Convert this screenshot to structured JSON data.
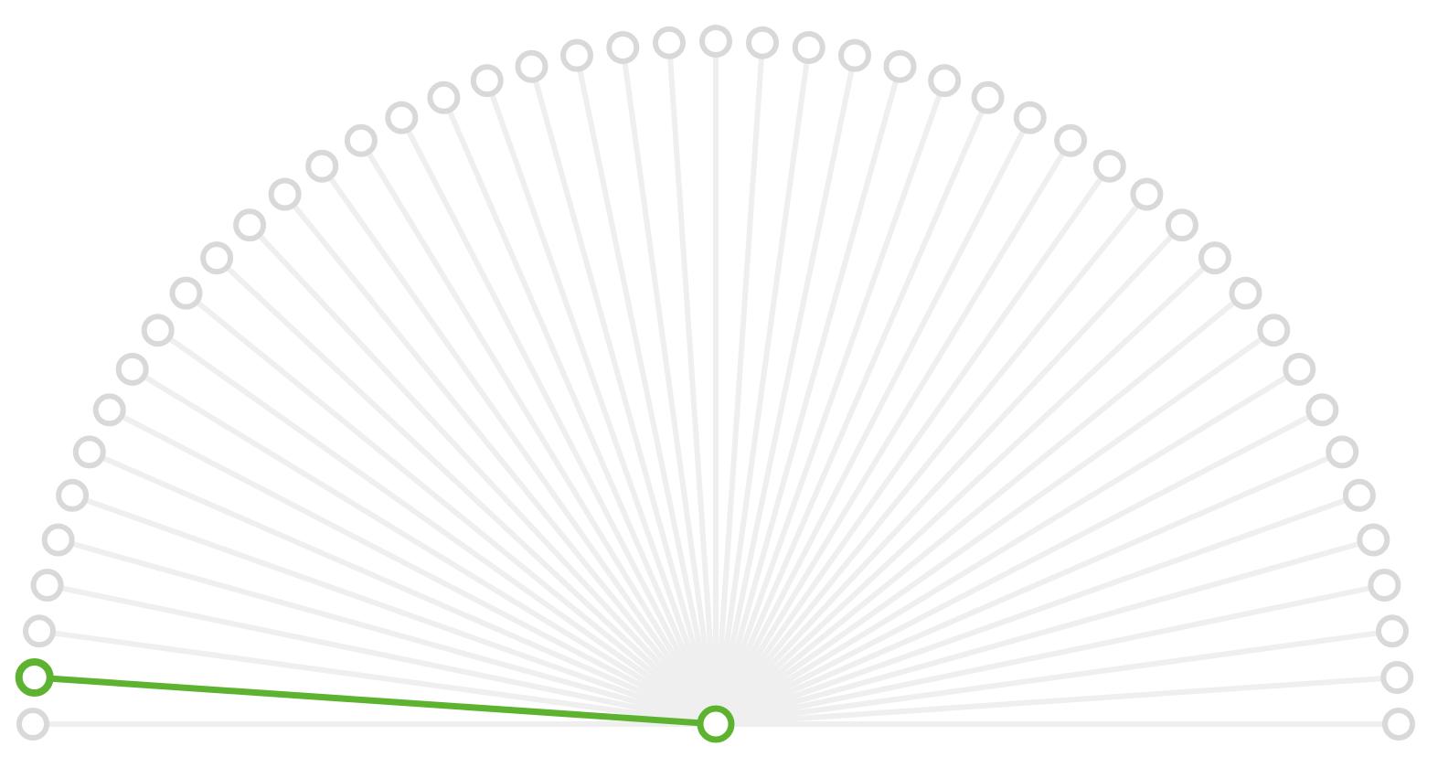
{
  "fan_selector": {
    "option_count": 47,
    "selected_option": 2,
    "colors": {
      "background": "#ffffff",
      "inactive_spoke": "#efefef",
      "inactive_handle": "#d9d9d9",
      "active": "#5db330"
    }
  }
}
